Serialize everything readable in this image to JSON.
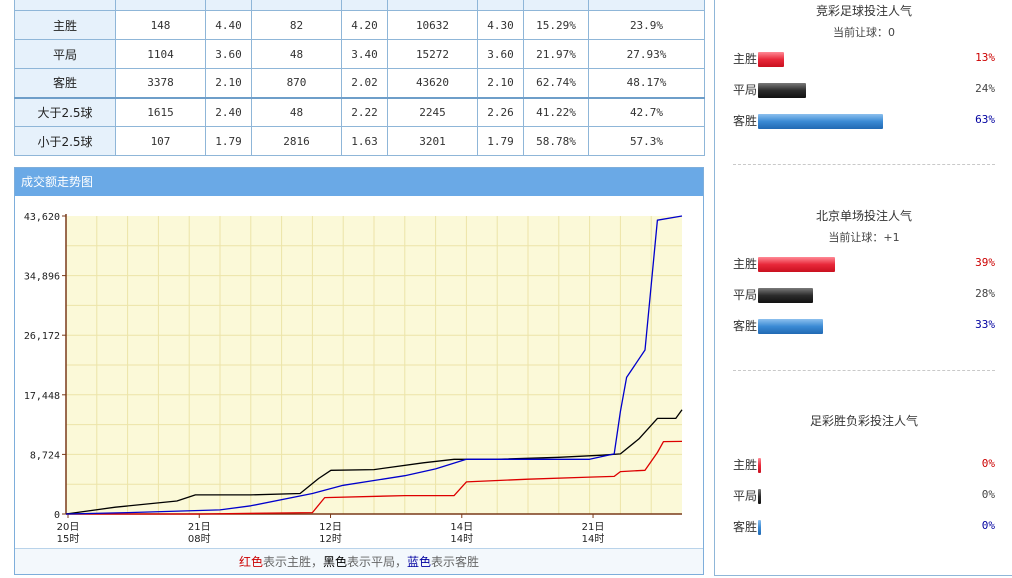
{
  "odds_table": {
    "header": [
      "",
      "",
      "",
      "",
      "",
      "",
      "",
      "",
      ""
    ],
    "rows": [
      {
        "label": "主胜",
        "cells": [
          "148",
          "4.40",
          "82",
          "4.20",
          "10632",
          "4.30",
          "15.29%",
          "23.9%"
        ]
      },
      {
        "label": "平局",
        "cells": [
          "1104",
          "3.60",
          "48",
          "3.40",
          "15272",
          "3.60",
          "21.97%",
          "27.93%"
        ]
      },
      {
        "label": "客胜",
        "cells": [
          "3378",
          "2.10",
          "870",
          "2.02",
          "43620",
          "2.10",
          "62.74%",
          "48.17%"
        ]
      },
      {
        "label": "大于2.5球",
        "cells": [
          "1615",
          "2.40",
          "48",
          "2.22",
          "2245",
          "2.26",
          "41.22%",
          "42.7%"
        ]
      },
      {
        "label": "小于2.5球",
        "cells": [
          "107",
          "1.79",
          "2816",
          "1.63",
          "3201",
          "1.79",
          "58.78%",
          "57.3%"
        ]
      }
    ]
  },
  "chart_panel": {
    "title": "成交额走势图",
    "legend": {
      "red_word": "红色",
      "red_text": "表示主胜，",
      "black_word": "黑色",
      "black_text": "表示平局，",
      "blue_word": "蓝色",
      "blue_text": "表示客胜"
    }
  },
  "chart_data": {
    "type": "line",
    "ylim": [
      0,
      43620
    ],
    "yticks": [
      "0",
      "8,724",
      "17,448",
      "26,172",
      "34,896",
      "43,620"
    ],
    "ytick_values": [
      0,
      8724,
      17448,
      26172,
      34896,
      43620
    ],
    "xticks": [
      {
        "day": "20日",
        "hour": "15时"
      },
      {
        "day": "21日",
        "hour": "08时"
      },
      {
        "day": "12日",
        "hour": "12时"
      },
      {
        "day": "14日",
        "hour": "14时"
      },
      {
        "day": "21日",
        "hour": "14时"
      }
    ],
    "xlim": [
      0,
      100
    ],
    "grid": true,
    "colors": {
      "home": "#dd0000",
      "draw": "#000000",
      "away": "#0000cc",
      "plot_bg": "#fbf9d8",
      "grid": "#ece4a8",
      "axis": "#7a3a1a"
    },
    "series": [
      {
        "key": "home",
        "x": [
          0,
          22,
          40,
          42,
          55,
          63,
          65,
          75,
          85,
          89,
          90,
          94,
          96,
          97,
          100
        ],
        "y": [
          0,
          0,
          200,
          2400,
          2700,
          2700,
          4700,
          5100,
          5400,
          5500,
          6200,
          6400,
          9000,
          10600,
          10632
        ]
      },
      {
        "key": "draw",
        "x": [
          0,
          8,
          18,
          21,
          30,
          38,
          41,
          43,
          50,
          58,
          63,
          70,
          80,
          87,
          90,
          93,
          96,
          99,
          100
        ],
        "y": [
          0,
          1000,
          1900,
          2800,
          2800,
          3000,
          5200,
          6400,
          6500,
          7500,
          8000,
          8000,
          8300,
          8600,
          8800,
          11000,
          14000,
          14000,
          15272
        ]
      },
      {
        "key": "away",
        "x": [
          0,
          10,
          25,
          30,
          40,
          45,
          55,
          60,
          65,
          75,
          85,
          89,
          90,
          91,
          94,
          96,
          100
        ],
        "y": [
          0,
          200,
          600,
          1200,
          3000,
          4200,
          5600,
          6600,
          8000,
          8000,
          8000,
          8800,
          15000,
          20000,
          24000,
          43000,
          43620
        ]
      }
    ]
  },
  "popularity": [
    {
      "title": "竞彩足球投注人气",
      "subtitle": "当前让球：0",
      "rows": [
        {
          "label": "主胜",
          "pct": "13%",
          "value": 13,
          "color": "red"
        },
        {
          "label": "平局",
          "pct": "24%",
          "value": 24,
          "color": "black"
        },
        {
          "label": "客胜",
          "pct": "63%",
          "value": 63,
          "color": "blue"
        }
      ]
    },
    {
      "title": "北京单场投注人气",
      "subtitle": "当前让球：+1",
      "rows": [
        {
          "label": "主胜",
          "pct": "39%",
          "value": 39,
          "color": "red"
        },
        {
          "label": "平局",
          "pct": "28%",
          "value": 28,
          "color": "black"
        },
        {
          "label": "客胜",
          "pct": "33%",
          "value": 33,
          "color": "blue"
        }
      ]
    },
    {
      "title": "足彩胜负彩投注人气",
      "subtitle": "",
      "rows": [
        {
          "label": "主胜",
          "pct": "0%",
          "value": 0,
          "color": "red"
        },
        {
          "label": "平局",
          "pct": "0%",
          "value": 0,
          "color": "black"
        },
        {
          "label": "客胜",
          "pct": "0%",
          "value": 0,
          "color": "blue"
        }
      ]
    }
  ]
}
